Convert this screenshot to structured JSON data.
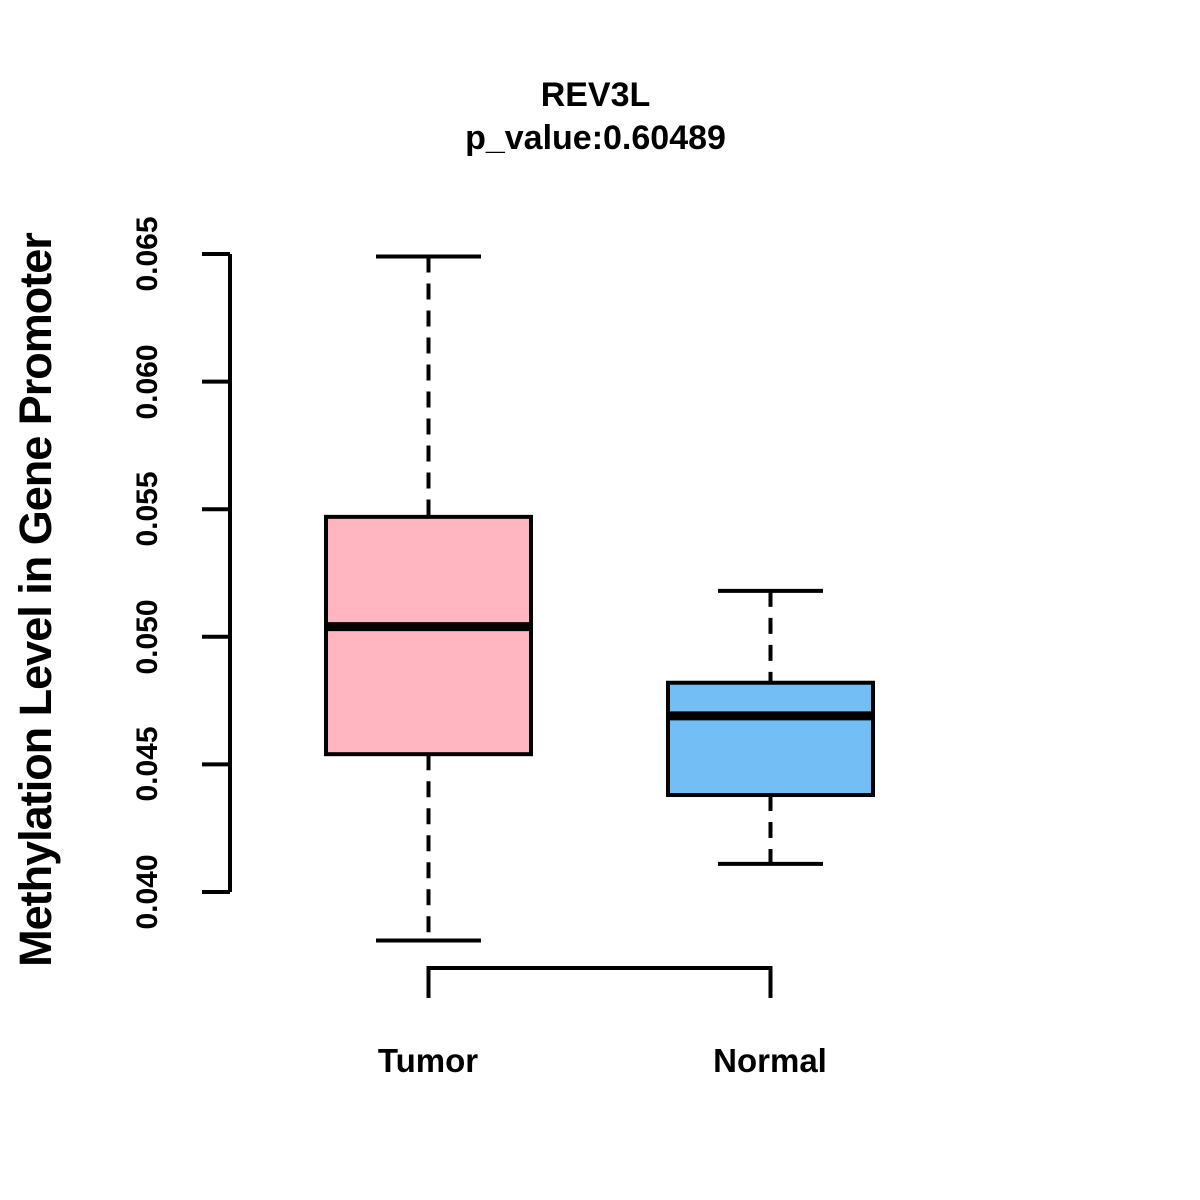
{
  "chart_data": {
    "type": "boxplot",
    "title": "REV3L",
    "subtitle": "p_value:0.60489",
    "gene": "REV3L",
    "p_value": 0.60489,
    "ylabel": "Methylation Level in Gene Promoter",
    "xlabel": "",
    "categories": [
      "Tumor",
      "Normal"
    ],
    "series": [
      {
        "name": "Tumor",
        "fill_color": "#FFB6C1",
        "whisker_low": 0.0381,
        "q1": 0.0454,
        "median": 0.0504,
        "q3": 0.0547,
        "whisker_high": 0.0649,
        "outliers": []
      },
      {
        "name": "Normal",
        "fill_color": "#73BFF5",
        "whisker_low": 0.0411,
        "q1": 0.0438,
        "median": 0.0469,
        "q3": 0.0482,
        "whisker_high": 0.0518,
        "outliers": []
      }
    ],
    "y_ticks": [
      {
        "value": 0.065,
        "label": "0.065"
      },
      {
        "value": 0.06,
        "label": "0.060"
      },
      {
        "value": 0.055,
        "label": "0.055"
      },
      {
        "value": 0.05,
        "label": "0.050"
      },
      {
        "value": 0.045,
        "label": "0.045"
      },
      {
        "value": 0.04,
        "label": "0.040"
      }
    ],
    "ylim": [
      0.037,
      0.066
    ],
    "grid": false,
    "legend": false,
    "line_color": "#000000",
    "background_color": "#FFFFFF",
    "whisker_style": "dashed"
  }
}
